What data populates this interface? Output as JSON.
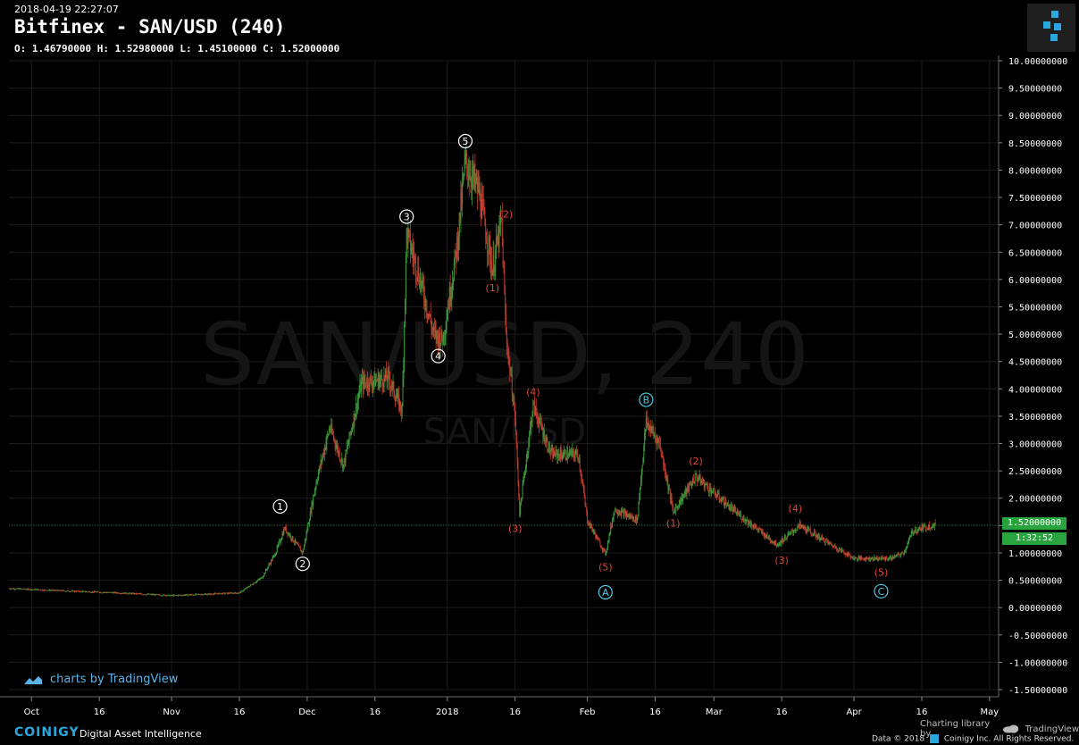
{
  "header": {
    "timestamp": "2018-04-19 22:27:07",
    "title": "Bitfinex - SAN/USD (240)",
    "ohlc": "O: 1.46790000 H: 1.52980000 L: 1.45100000 C: 1.52000000"
  },
  "watermark": {
    "main": "SAN/USD, 240",
    "sub": "SAN/USD"
  },
  "price_tag": {
    "last_price": "1.52000000",
    "countdown": "1:32:52",
    "color": "#29a33d"
  },
  "branding": {
    "tv_label": "charts by TradingView",
    "coinigy": "COINIGY",
    "tagline": "Digital Asset Intelligence",
    "charting_library": "Charting library by",
    "tradingview": "TradingView",
    "copyright": "Data © 2018",
    "coinigy_rights": "Coinigy Inc. All Rights Reserved."
  },
  "colors": {
    "up": "#3c9a3c",
    "down": "#c0392b",
    "wave_white": "#ffffff",
    "wave_red": "#e0453a",
    "wave_cyan": "#4ec9e8",
    "grid": "#1c1c1c"
  },
  "chart_data": {
    "type": "candlestick",
    "y_ticks": [
      "10.00000000",
      "9.50000000",
      "9.00000000",
      "8.50000000",
      "8.00000000",
      "7.50000000",
      "7.00000000",
      "6.50000000",
      "6.00000000",
      "5.50000000",
      "5.00000000",
      "4.50000000",
      "4.00000000",
      "3.50000000",
      "3.00000000",
      "2.50000000",
      "2.00000000",
      "1.50000000",
      "1.00000000",
      "0.50000000",
      "0.00000000",
      "-0.50000000",
      "-1.00000000",
      "-1.50000000"
    ],
    "ylim": [
      -1.5,
      10.0
    ],
    "x_tick_labels": [
      {
        "label": "Oct",
        "date": "2017-10-01"
      },
      {
        "label": "16",
        "date": "2017-10-16"
      },
      {
        "label": "Nov",
        "date": "2017-11-01"
      },
      {
        "label": "16",
        "date": "2017-11-16"
      },
      {
        "label": "Dec",
        "date": "2017-12-01"
      },
      {
        "label": "16",
        "date": "2017-12-16"
      },
      {
        "label": "2018",
        "date": "2018-01-01"
      },
      {
        "label": "16",
        "date": "2018-01-16"
      },
      {
        "label": "Feb",
        "date": "2018-02-01"
      },
      {
        "label": "16",
        "date": "2018-02-16"
      },
      {
        "label": "Mar",
        "date": "2018-03-01"
      },
      {
        "label": "16",
        "date": "2018-03-16"
      },
      {
        "label": "Apr",
        "date": "2018-04-01"
      },
      {
        "label": "16",
        "date": "2018-04-16"
      },
      {
        "label": "May",
        "date": "2018-05-01"
      }
    ],
    "price_path": [
      {
        "date": "2017-09-26",
        "price": 0.35
      },
      {
        "date": "2017-10-10",
        "price": 0.3
      },
      {
        "date": "2017-10-20",
        "price": 0.27
      },
      {
        "date": "2017-11-01",
        "price": 0.22
      },
      {
        "date": "2017-11-16",
        "price": 0.27
      },
      {
        "date": "2017-11-21",
        "price": 0.55
      },
      {
        "date": "2017-11-24",
        "price": 1.0
      },
      {
        "date": "2017-11-26",
        "price": 1.45
      },
      {
        "date": "2017-11-30",
        "price": 1.0
      },
      {
        "date": "2017-12-03",
        "price": 2.3
      },
      {
        "date": "2017-12-06",
        "price": 3.3
      },
      {
        "date": "2017-12-09",
        "price": 2.6
      },
      {
        "date": "2017-12-13",
        "price": 4.1
      },
      {
        "date": "2017-12-19",
        "price": 4.2
      },
      {
        "date": "2017-12-22",
        "price": 3.6
      },
      {
        "date": "2017-12-23",
        "price": 6.85
      },
      {
        "date": "2017-12-26",
        "price": 6.0
      },
      {
        "date": "2017-12-29",
        "price": 5.0
      },
      {
        "date": "2017-12-31",
        "price": 4.9
      },
      {
        "date": "2018-01-03",
        "price": 6.5
      },
      {
        "date": "2018-01-05",
        "price": 8.15
      },
      {
        "date": "2018-01-08",
        "price": 7.6
      },
      {
        "date": "2018-01-11",
        "price": 6.2
      },
      {
        "date": "2018-01-13",
        "price": 7.05
      },
      {
        "date": "2018-01-14",
        "price": 5.0
      },
      {
        "date": "2018-01-16",
        "price": 3.5
      },
      {
        "date": "2018-01-17",
        "price": 1.75
      },
      {
        "date": "2018-01-20",
        "price": 3.7
      },
      {
        "date": "2018-01-24",
        "price": 2.8
      },
      {
        "date": "2018-01-30",
        "price": 2.8
      },
      {
        "date": "2018-02-01",
        "price": 1.6
      },
      {
        "date": "2018-02-05",
        "price": 0.98
      },
      {
        "date": "2018-02-07",
        "price": 1.8
      },
      {
        "date": "2018-02-12",
        "price": 1.6
      },
      {
        "date": "2018-02-14",
        "price": 3.4
      },
      {
        "date": "2018-02-17",
        "price": 3.0
      },
      {
        "date": "2018-02-20",
        "price": 1.75
      },
      {
        "date": "2018-02-25",
        "price": 2.4
      },
      {
        "date": "2018-03-05",
        "price": 1.8
      },
      {
        "date": "2018-03-15",
        "price": 1.15
      },
      {
        "date": "2018-03-20",
        "price": 1.5
      },
      {
        "date": "2018-03-25",
        "price": 1.25
      },
      {
        "date": "2018-04-01",
        "price": 0.9
      },
      {
        "date": "2018-04-09",
        "price": 0.9
      },
      {
        "date": "2018-04-12",
        "price": 1.0
      },
      {
        "date": "2018-04-14",
        "price": 1.4
      },
      {
        "date": "2018-04-19",
        "price": 1.52
      }
    ],
    "wave_labels": [
      {
        "text": "1",
        "style": "circle",
        "color": "white",
        "date": "2017-11-25",
        "price": 1.85
      },
      {
        "text": "2",
        "style": "circle",
        "color": "white",
        "date": "2017-11-30",
        "price": 0.8
      },
      {
        "text": "3",
        "style": "circle",
        "color": "white",
        "date": "2017-12-23",
        "price": 7.15
      },
      {
        "text": "4",
        "style": "circle",
        "color": "white",
        "date": "2017-12-30",
        "price": 4.6
      },
      {
        "text": "5",
        "style": "circle",
        "color": "white",
        "date": "2018-01-05",
        "price": 8.53
      },
      {
        "text": "(1)",
        "style": "paren",
        "color": "red",
        "date": "2018-01-11",
        "price": 5.85
      },
      {
        "text": "(2)",
        "style": "paren",
        "color": "red",
        "date": "2018-01-14",
        "price": 7.2
      },
      {
        "text": "(3)",
        "style": "paren",
        "color": "red",
        "date": "2018-01-16",
        "price": 1.45
      },
      {
        "text": "(4)",
        "style": "paren",
        "color": "red",
        "date": "2018-01-20",
        "price": 3.95
      },
      {
        "text": "(5)",
        "style": "paren",
        "color": "red",
        "date": "2018-02-05",
        "price": 0.75
      },
      {
        "text": "A",
        "style": "circle",
        "color": "cyan",
        "date": "2018-02-05",
        "price": 0.28
      },
      {
        "text": "B",
        "style": "circle",
        "color": "cyan",
        "date": "2018-02-14",
        "price": 3.8
      },
      {
        "text": "(1)",
        "style": "paren",
        "color": "red",
        "date": "2018-02-20",
        "price": 1.55
      },
      {
        "text": "(2)",
        "style": "paren",
        "color": "red",
        "date": "2018-02-25",
        "price": 2.68
      },
      {
        "text": "(3)",
        "style": "paren",
        "color": "red",
        "date": "2018-03-16",
        "price": 0.87
      },
      {
        "text": "(4)",
        "style": "paren",
        "color": "red",
        "date": "2018-03-19",
        "price": 1.82
      },
      {
        "text": "(5)",
        "style": "paren",
        "color": "red",
        "date": "2018-04-07",
        "price": 0.65
      },
      {
        "text": "C",
        "style": "circle",
        "color": "cyan",
        "date": "2018-04-07",
        "price": 0.3
      }
    ]
  }
}
